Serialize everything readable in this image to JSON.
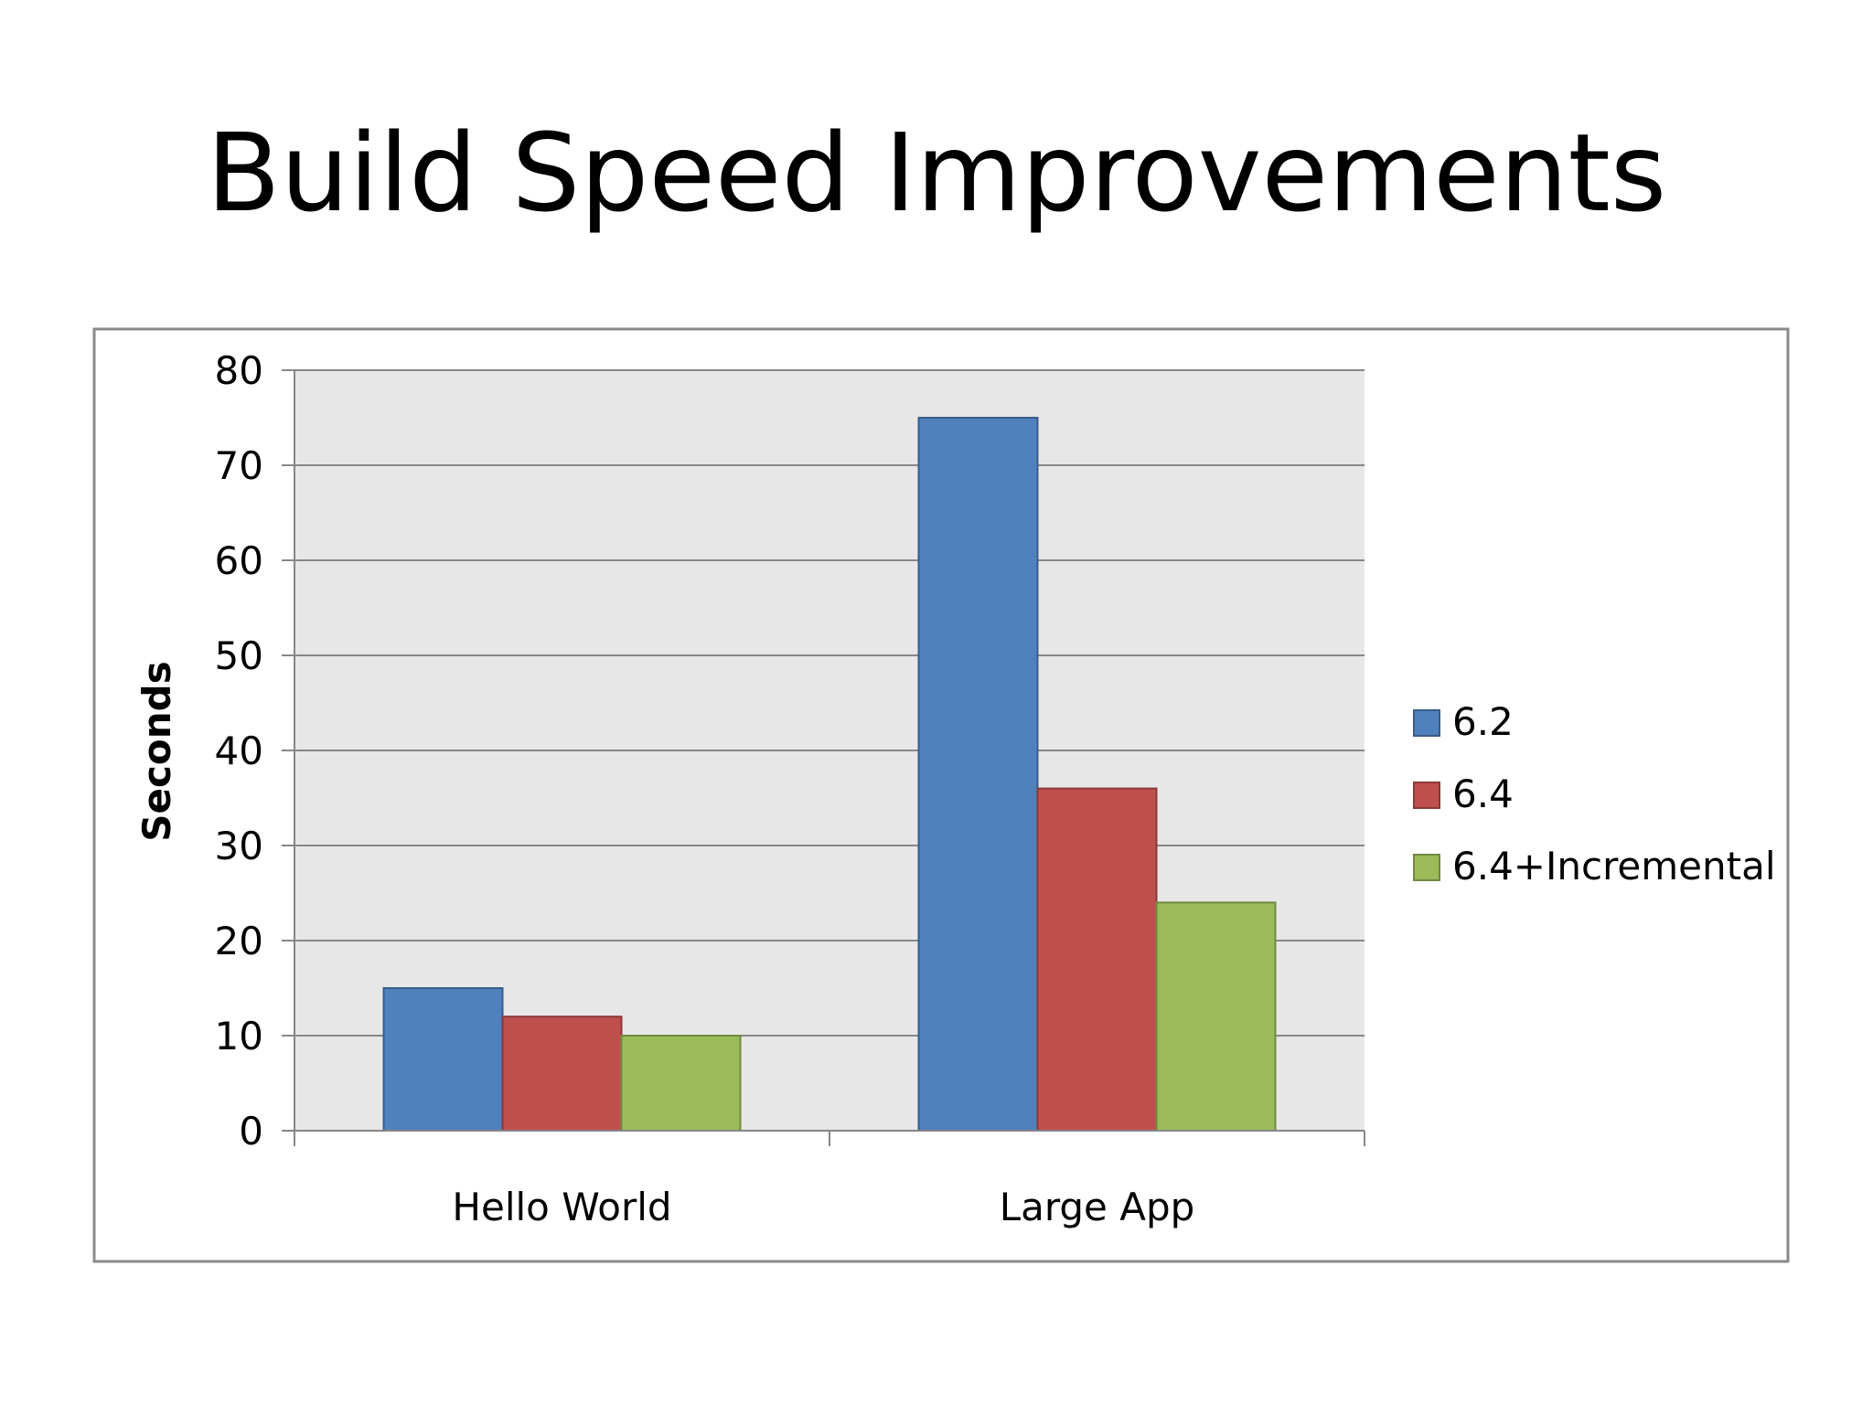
{
  "slide": {
    "title": "Build Speed Improvements"
  },
  "chart_data": {
    "type": "bar",
    "title": "",
    "xlabel": "",
    "ylabel": "Seconds",
    "categories": [
      "Hello World",
      "Large App"
    ],
    "series": [
      {
        "name": "6.2",
        "values": [
          15,
          75
        ],
        "color": "#4f81bd",
        "stroke": "#385d8a"
      },
      {
        "name": "6.4",
        "values": [
          12,
          36
        ],
        "color": "#c0504d",
        "stroke": "#8c3836"
      },
      {
        "name": "6.4+Incremental",
        "values": [
          10,
          24
        ],
        "color": "#9bbb59",
        "stroke": "#71893f"
      }
    ],
    "ylim": [
      0,
      80
    ],
    "yticks": [
      0,
      10,
      20,
      30,
      40,
      50,
      60,
      70,
      80
    ],
    "grid": true,
    "legend": "right",
    "plot_background": "#e8e7e8",
    "gridline_color": "#878787"
  }
}
